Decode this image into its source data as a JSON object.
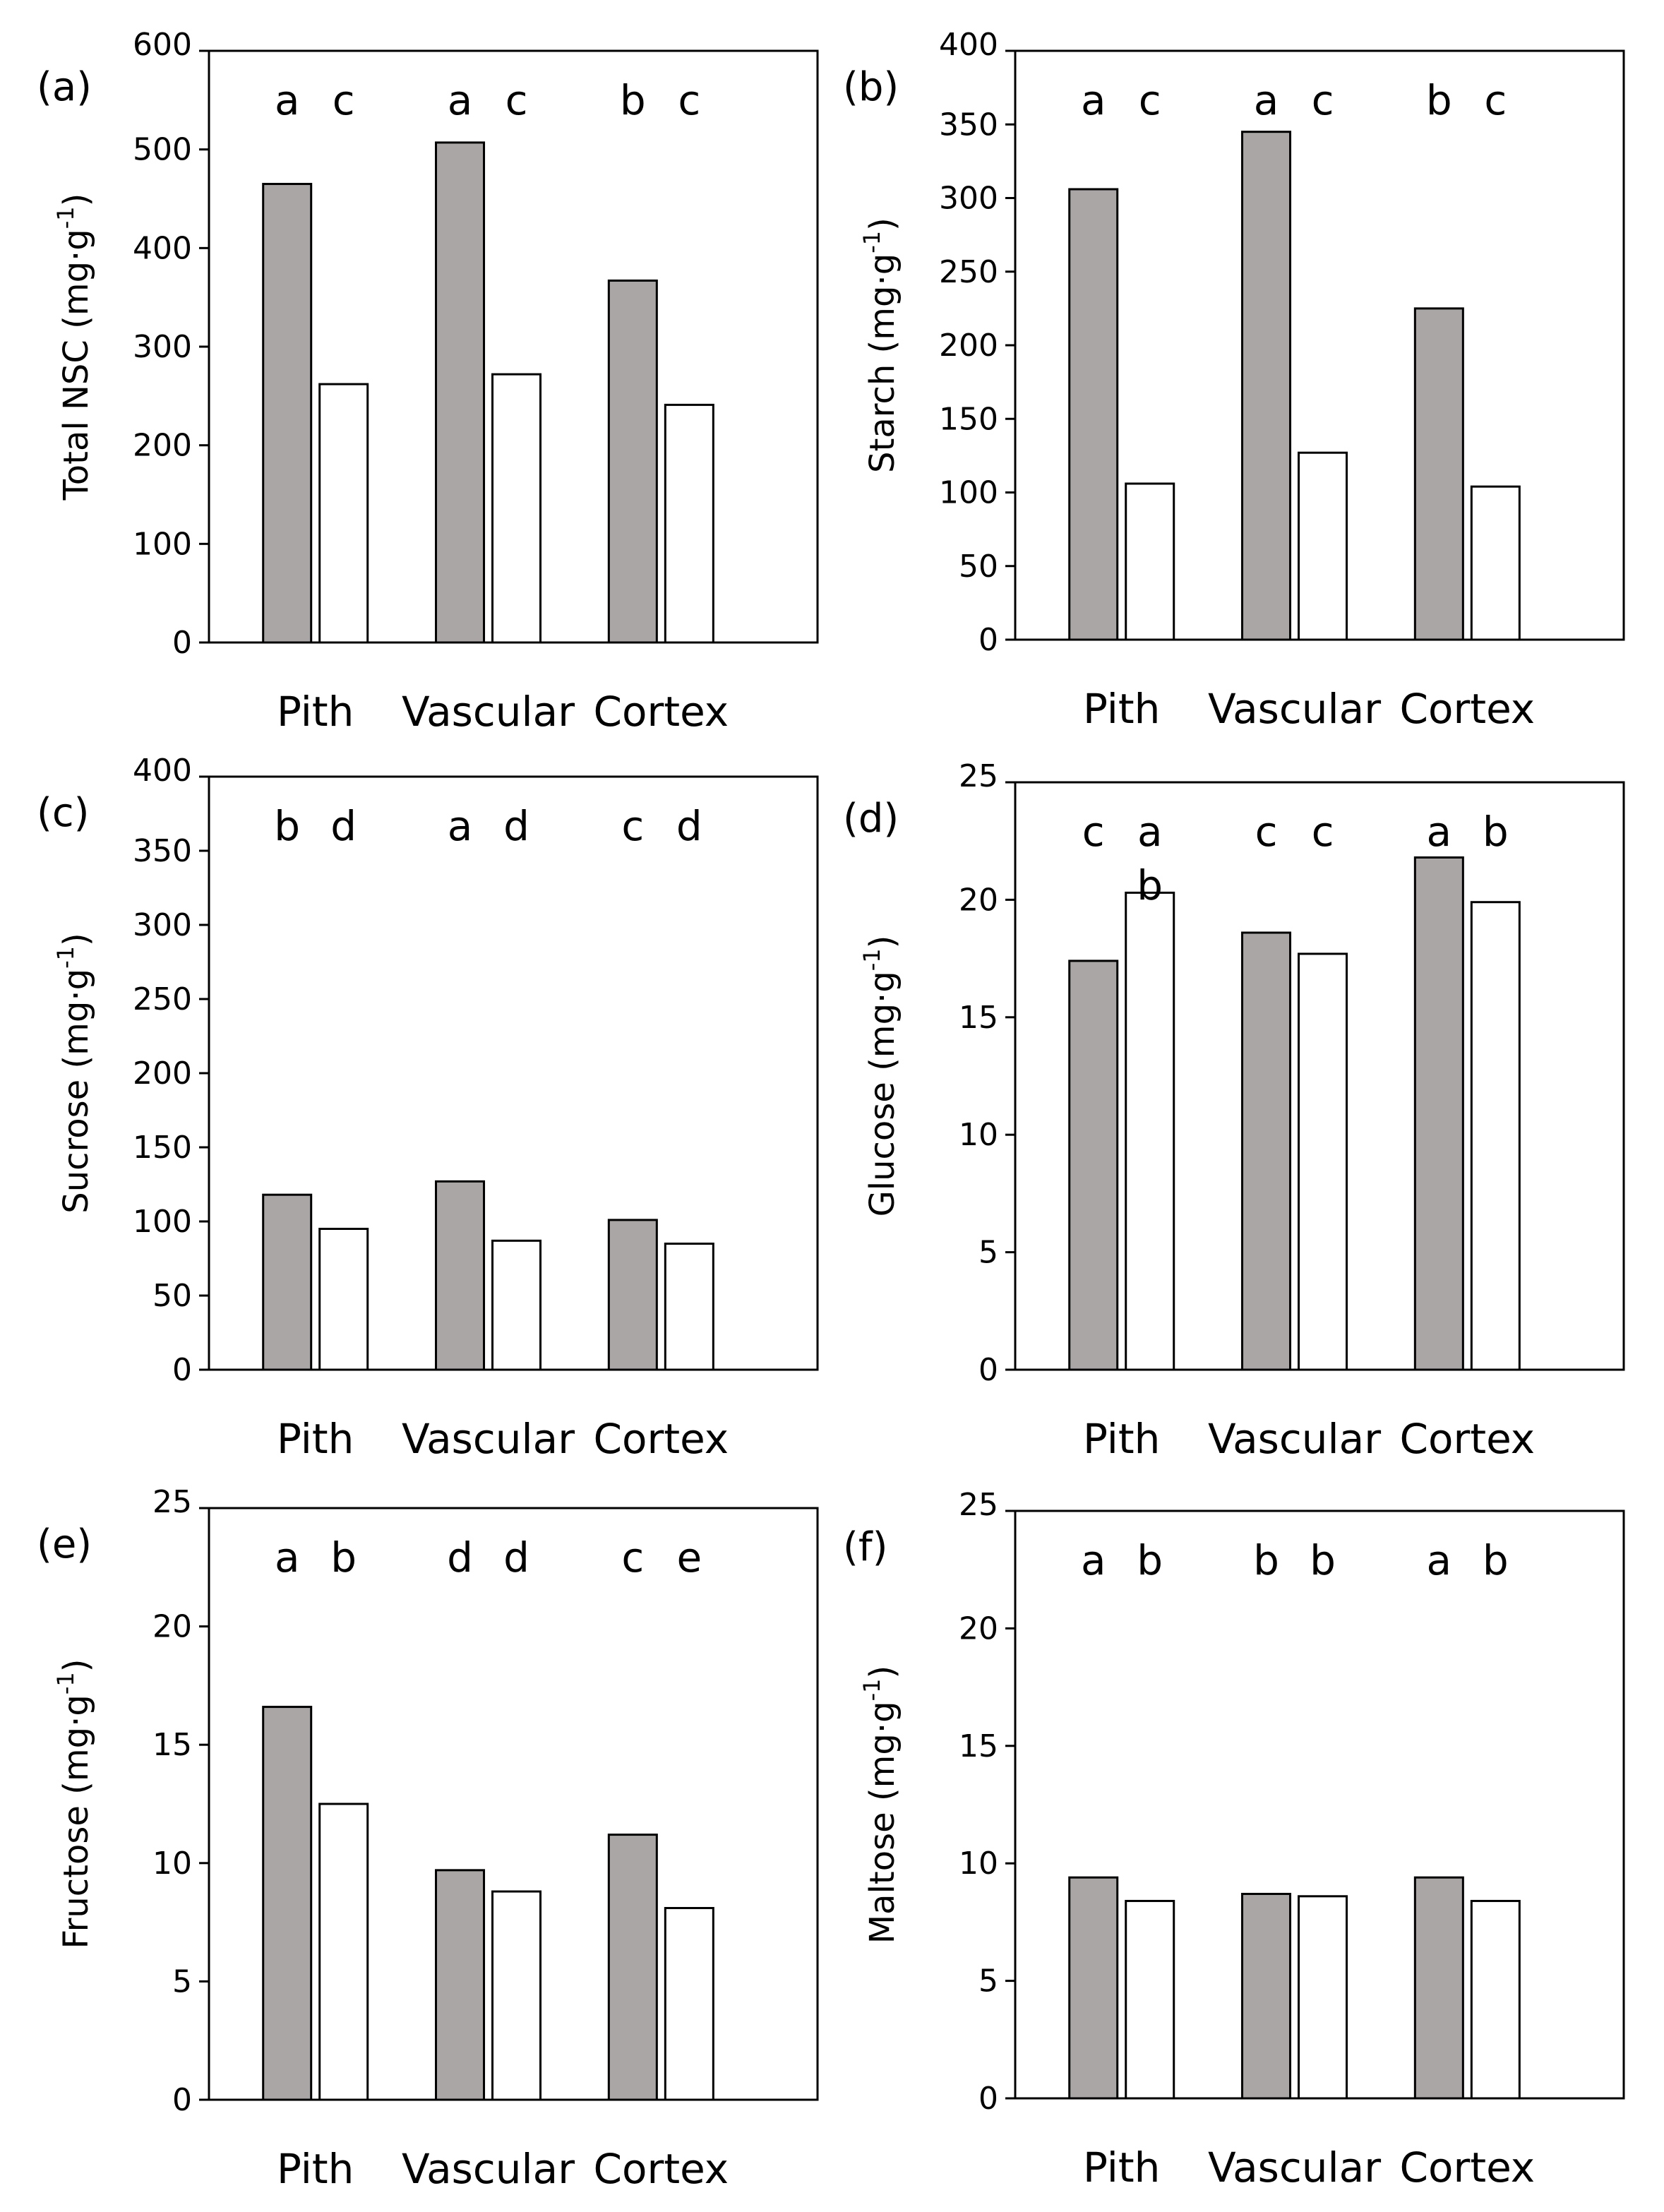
{
  "chart_data": [
    {
      "type": "bar",
      "panel": "(a)",
      "ylabel": "Total NSC (mg·g",
      "ylabel_sup": "-1",
      "ylabel_close": ")",
      "categories": [
        "Pith",
        "Vascular",
        "Cortex"
      ],
      "ylim": [
        0,
        600
      ],
      "yticks": [
        0,
        100,
        200,
        300,
        400,
        500,
        600
      ],
      "series": [
        {
          "name": "gray",
          "color": "#aaa6a6",
          "values": [
            465,
            507,
            367
          ]
        },
        {
          "name": "white",
          "color": "#ffffff",
          "values": [
            262,
            272,
            241
          ]
        }
      ],
      "letters": [
        [
          "a",
          "c"
        ],
        [
          "a",
          "c"
        ],
        [
          "b",
          "c"
        ]
      ]
    },
    {
      "type": "bar",
      "panel": "(b)",
      "ylabel": "Starch (mg·g",
      "ylabel_sup": "-1",
      "ylabel_close": ")",
      "categories": [
        "Pith",
        "Vascular",
        "Cortex"
      ],
      "ylim": [
        0,
        400
      ],
      "yticks": [
        0,
        50,
        100,
        150,
        200,
        250,
        300,
        350,
        400
      ],
      "series": [
        {
          "name": "gray",
          "color": "#aaa6a6",
          "values": [
            306,
            345,
            225
          ]
        },
        {
          "name": "white",
          "color": "#ffffff",
          "values": [
            106,
            127,
            104
          ]
        }
      ],
      "letters": [
        [
          "a",
          "c"
        ],
        [
          "a",
          "c"
        ],
        [
          "b",
          "c"
        ]
      ]
    },
    {
      "type": "bar",
      "panel": "(c)",
      "ylabel": "Sucrose (mg·g",
      "ylabel_sup": "-1",
      "ylabel_close": ")",
      "categories": [
        "Pith",
        "Vascular",
        "Cortex"
      ],
      "ylim": [
        0,
        400
      ],
      "yticks": [
        0,
        50,
        100,
        150,
        200,
        250,
        300,
        350,
        400
      ],
      "series": [
        {
          "name": "gray",
          "color": "#aaa6a6",
          "values": [
            118,
            127,
            101
          ]
        },
        {
          "name": "white",
          "color": "#ffffff",
          "values": [
            95,
            87,
            85
          ]
        }
      ],
      "letters": [
        [
          "b",
          "d"
        ],
        [
          "a",
          "d"
        ],
        [
          "c",
          "d"
        ]
      ]
    },
    {
      "type": "bar",
      "panel": "(d)",
      "ylabel": "Glucose (mg·g",
      "ylabel_sup": "-1",
      "ylabel_close": ")",
      "categories": [
        "Pith",
        "Vascular",
        "Cortex"
      ],
      "ylim": [
        0,
        25
      ],
      "yticks": [
        0,
        5,
        10,
        15,
        20,
        25
      ],
      "series": [
        {
          "name": "gray",
          "color": "#aaa6a6",
          "values": [
            17.4,
            18.6,
            21.8
          ]
        },
        {
          "name": "white",
          "color": "#ffffff",
          "values": [
            20.3,
            17.7,
            19.9
          ]
        }
      ],
      "letters": [
        [
          "c",
          "a\nb"
        ],
        [
          "c",
          "c"
        ],
        [
          "a",
          "b"
        ]
      ]
    },
    {
      "type": "bar",
      "panel": "(e)",
      "ylabel": "Fructose (mg·g",
      "ylabel_sup": "-1",
      "ylabel_close": ")",
      "categories": [
        "Pith",
        "Vascular",
        "Cortex"
      ],
      "ylim": [
        0,
        25
      ],
      "yticks": [
        0,
        5,
        10,
        15,
        20,
        25
      ],
      "series": [
        {
          "name": "gray",
          "color": "#aaa6a6",
          "values": [
            16.6,
            9.7,
            11.2
          ]
        },
        {
          "name": "white",
          "color": "#ffffff",
          "values": [
            12.5,
            8.8,
            8.1
          ]
        }
      ],
      "letters": [
        [
          "a",
          "b"
        ],
        [
          "d",
          "d"
        ],
        [
          "c",
          "e"
        ]
      ]
    },
    {
      "type": "bar",
      "panel": "(f)",
      "ylabel": "Maltose (mg·g",
      "ylabel_sup": "-1",
      "ylabel_close": ")",
      "categories": [
        "Pith",
        "Vascular",
        "Cortex"
      ],
      "ylim": [
        0,
        25
      ],
      "yticks": [
        0,
        5,
        10,
        15,
        20,
        25
      ],
      "series": [
        {
          "name": "gray",
          "color": "#aaa6a6",
          "values": [
            9.4,
            8.7,
            9.4
          ]
        },
        {
          "name": "white",
          "color": "#ffffff",
          "values": [
            8.4,
            8.6,
            8.4
          ]
        }
      ],
      "letters": [
        [
          "a",
          "b"
        ],
        [
          "b",
          "b"
        ],
        [
          "a",
          "b"
        ]
      ]
    }
  ]
}
